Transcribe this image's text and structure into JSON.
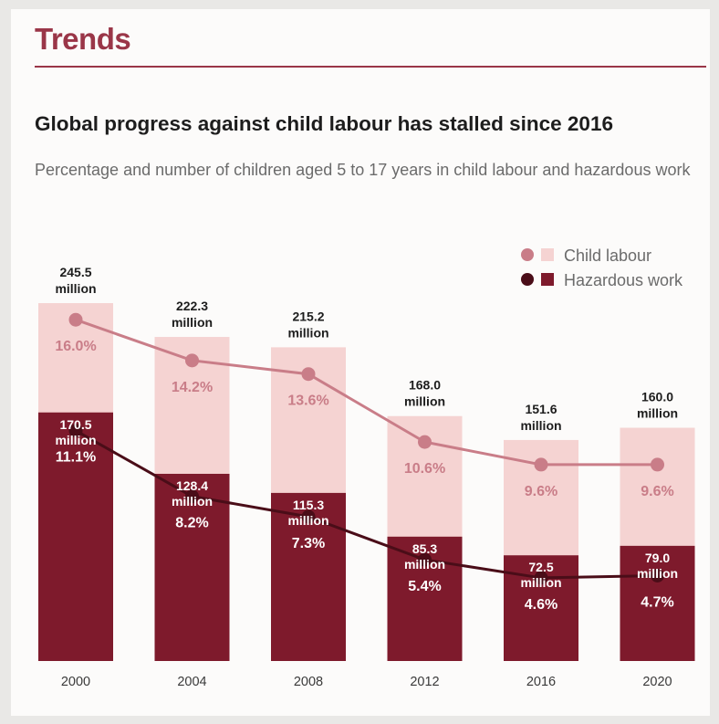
{
  "header": {
    "section_title": "Trends",
    "headline": "Global progress against child labour has stalled since 2016",
    "subtitle": "Percentage and number of children aged 5 to 17 years in child labour and hazardous work"
  },
  "colors": {
    "accent": "#9a3648",
    "child_labour_bar": "#f5d3d2",
    "child_labour_line": "#c97d88",
    "hazardous_bar": "#7e1a2c",
    "hazardous_line": "#4a0d18"
  },
  "chart_data": {
    "type": "bar",
    "title": "Global progress against child labour has stalled since 2016",
    "subtitle": "Percentage and number of children aged 5 to 17 years in child labour and hazardous work",
    "categories": [
      "2000",
      "2004",
      "2008",
      "2012",
      "2016",
      "2020"
    ],
    "legend_position": "top-right",
    "grid": false,
    "series": [
      {
        "name": "Child labour",
        "values_million": [
          245.5,
          222.3,
          215.2,
          168.0,
          151.6,
          160.0
        ],
        "value_labels": [
          "245.5 million",
          "222.3 million",
          "215.2 million",
          "168.0 million",
          "151.6 million",
          "160.0 million"
        ],
        "percent": [
          16.0,
          14.2,
          13.6,
          10.6,
          9.6,
          9.6
        ],
        "percent_labels": [
          "16.0%",
          "14.2%",
          "13.6%",
          "10.6%",
          "9.6%",
          "9.6%"
        ]
      },
      {
        "name": "Hazardous work",
        "values_million": [
          170.5,
          128.4,
          115.3,
          85.3,
          72.5,
          79.0
        ],
        "value_labels": [
          "170.5 million",
          "128.4 million",
          "115.3 million",
          "85.3 million",
          "72.5 million",
          "79.0 million"
        ],
        "percent": [
          11.1,
          8.2,
          7.3,
          5.4,
          4.6,
          4.7
        ],
        "percent_labels": [
          "11.1%",
          "8.2%",
          "7.3%",
          "5.4%",
          "4.6%",
          "4.7%"
        ]
      }
    ],
    "ylim_million": [
      0,
      245.5
    ]
  }
}
